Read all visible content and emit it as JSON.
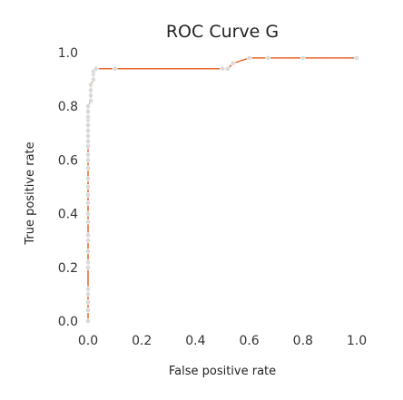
{
  "chart_data": {
    "type": "line",
    "title": "ROC Curve G",
    "xlabel": "False positive rate",
    "ylabel": "True positive rate",
    "xlim": [
      0.0,
      1.0
    ],
    "ylim": [
      0.0,
      1.0
    ],
    "x_ticks": [
      "0.0",
      "0.2",
      "0.4",
      "0.6",
      "0.8",
      "1.0"
    ],
    "y_ticks": [
      "0.0",
      "0.2",
      "0.4",
      "0.6",
      "0.8",
      "1.0"
    ],
    "grid": false,
    "legend": "none",
    "series": [
      {
        "color": "#e8692d",
        "marker_color": "#d9d9d9",
        "x": [
          0.0,
          0.0,
          0.0,
          0.0,
          0.0,
          0.0,
          0.0,
          0.0,
          0.0,
          0.0,
          0.0,
          0.0,
          0.0,
          0.0,
          0.0,
          0.0,
          0.0,
          0.0,
          0.0,
          0.0,
          0.0,
          0.0,
          0.0,
          0.0,
          0.0,
          0.0,
          0.0,
          0.0,
          0.01,
          0.01,
          0.01,
          0.01,
          0.02,
          0.02,
          0.02,
          0.03,
          0.1,
          0.5,
          0.52,
          0.54,
          0.6,
          0.67,
          0.8,
          1.0
        ],
        "y": [
          0.0,
          0.04,
          0.07,
          0.1,
          0.12,
          0.2,
          0.22,
          0.26,
          0.3,
          0.32,
          0.37,
          0.4,
          0.44,
          0.47,
          0.5,
          0.53,
          0.57,
          0.6,
          0.62,
          0.65,
          0.67,
          0.69,
          0.71,
          0.73,
          0.75,
          0.76,
          0.78,
          0.8,
          0.82,
          0.84,
          0.86,
          0.88,
          0.9,
          0.92,
          0.93,
          0.94,
          0.94,
          0.94,
          0.94,
          0.96,
          0.98,
          0.98,
          0.98,
          0.98
        ]
      }
    ]
  }
}
